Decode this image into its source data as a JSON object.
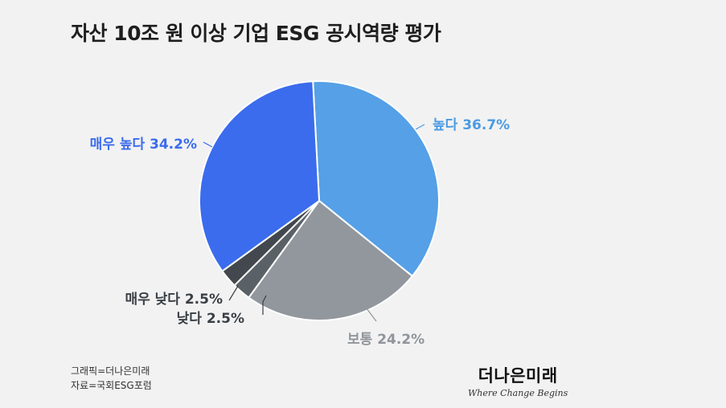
{
  "title": "자산 10조 원 이상 기업 ESG 공시역량 평가",
  "chart_data": {
    "type": "pie",
    "slices": [
      {
        "label": "높다",
        "value": 36.7,
        "display": "높다 36.7%",
        "color": "#55a0e6",
        "label_color": "#4a9be2"
      },
      {
        "label": "보통",
        "value": 24.2,
        "display": "보통 24.2%",
        "color": "#92979d",
        "label_color": "#8f959b"
      },
      {
        "label": "낮다",
        "value": 2.5,
        "display": "낮다 2.5%",
        "color": "#5a6166",
        "label_color": "#3a3f44"
      },
      {
        "label": "매우 낮다",
        "value": 2.5,
        "display": "매우 낮다 2.5%",
        "color": "#42484d",
        "label_color": "#3a3f44"
      },
      {
        "label": "매우 높다",
        "value": 34.2,
        "display": "매우 높다 34.2%",
        "color": "#3b6ced",
        "label_color": "#3b6ced"
      }
    ]
  },
  "credits": {
    "graphic": "그래픽=더나은미래",
    "source": "자료=국회ESG포럼"
  },
  "brand": {
    "name": "더나은미래",
    "tagline": "Where Change Begins"
  }
}
